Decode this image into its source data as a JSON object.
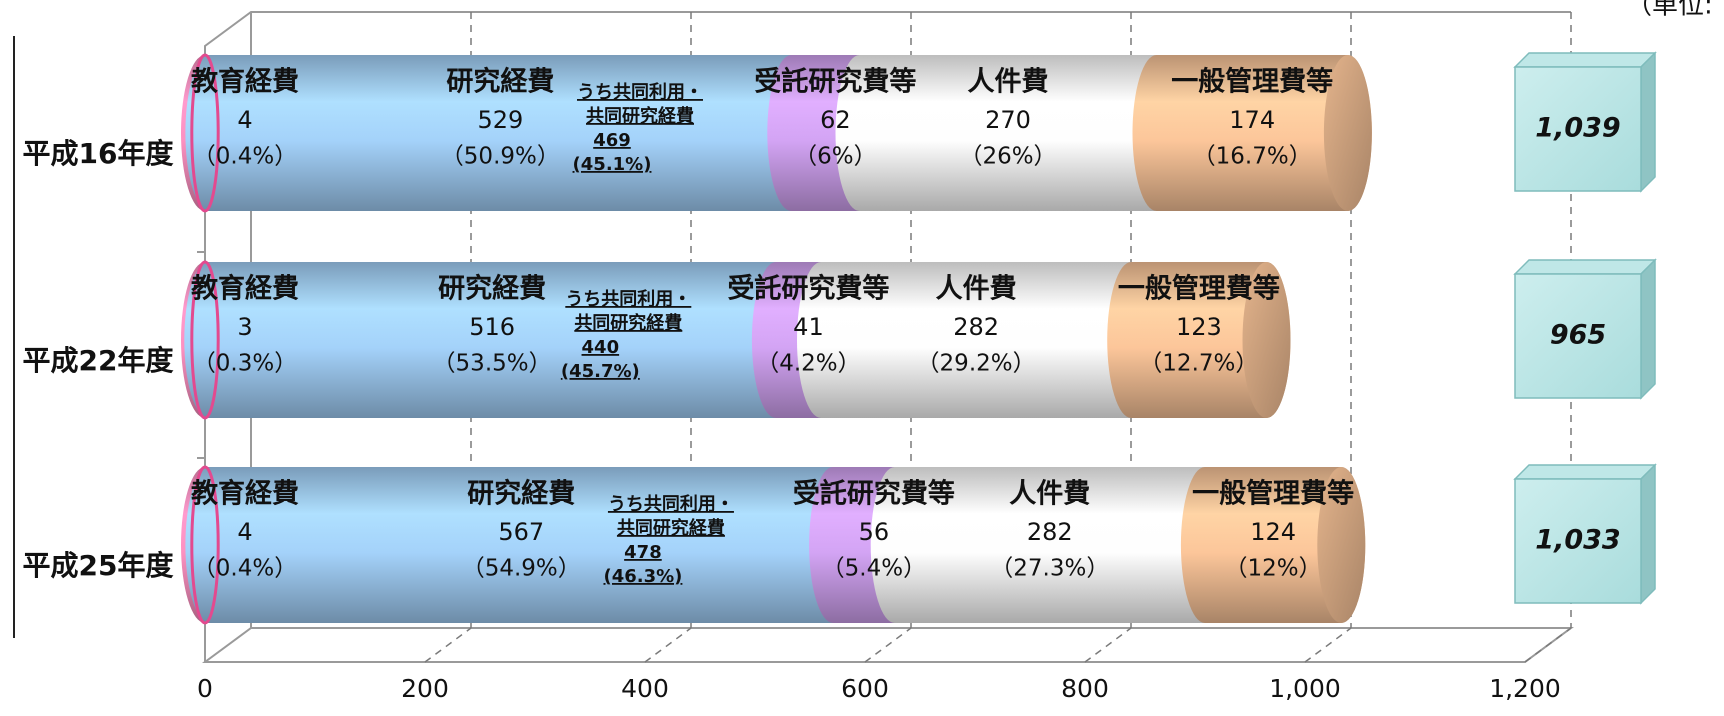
{
  "unit_label": "（単位:",
  "chart_data": {
    "type": "bar",
    "orientation": "horizontal",
    "stacked": true,
    "style": "3d-cylinder",
    "xlim": [
      0,
      1200
    ],
    "x_ticks": [
      "0",
      "200",
      "400",
      "600",
      "800",
      "1,000",
      "1,200"
    ],
    "grid": true,
    "categories": [
      "平成16年度",
      "平成22年度",
      "平成25年度"
    ],
    "series": [
      {
        "name": "教育経費",
        "color": "#f08ab8",
        "values": [
          4,
          3,
          4
        ],
        "pct": [
          "（0.4%）",
          "（0.3%）",
          "（0.4%）"
        ]
      },
      {
        "name": "研究経費",
        "color": "#9cc8ee",
        "values": [
          529,
          516,
          567
        ],
        "pct": [
          "（50.9%）",
          "（53.5%）",
          "（54.9%）"
        ]
      },
      {
        "name": "受託研究費等",
        "color": "#c99ce8",
        "values": [
          62,
          41,
          56
        ],
        "pct": [
          "（6%）",
          "（4.2%）",
          "（5.4%）"
        ]
      },
      {
        "name": "人件費",
        "color": "#f2f2f2",
        "values": [
          270,
          282,
          282
        ],
        "pct": [
          "（26%）",
          "（29.2%）",
          "（27.3%）"
        ]
      },
      {
        "name": "一般管理費等",
        "color": "#f0bd93",
        "values": [
          174,
          123,
          124
        ],
        "pct": [
          "（16.7%）",
          "（12.7%）",
          "（12%）"
        ]
      }
    ],
    "sub_annotation": {
      "label_line1": "うち共同利用・",
      "label_line2": "共同研究経費",
      "values": [
        "469",
        "440",
        "478"
      ],
      "pct": [
        "(45.1%)",
        "(45.7%)",
        "(46.3%)"
      ]
    },
    "totals": [
      "1,039",
      "965",
      "1,033"
    ]
  }
}
